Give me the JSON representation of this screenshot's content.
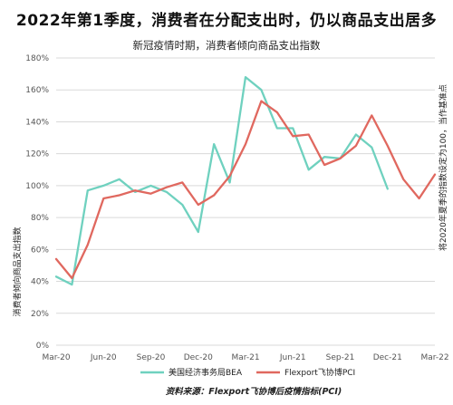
{
  "chart_data": {
    "type": "line",
    "title": "2022年第1季度，消费者在分配支出时，仍以商品支出居多",
    "subtitle": "新冠疫情时期，消费者倾向商品支出指数",
    "ylabel_left": "消费者倾向商品支出指数",
    "ylabel_right": "将2020年夏季的指数设定为100，当作基准点",
    "ylim": [
      0,
      180
    ],
    "y_ticks": [
      "0%",
      "20%",
      "40%",
      "60%",
      "80%",
      "100%",
      "120%",
      "140%",
      "160%",
      "180%"
    ],
    "x_ticks": [
      "Mar-20",
      "Jun-20",
      "Sep-20",
      "Dec-20",
      "Mar-21",
      "Jun-21",
      "Sep-21",
      "Dec-21",
      "Mar-22"
    ],
    "x_unit": "month",
    "x": [
      "Mar-20",
      "Apr-20",
      "May-20",
      "Jun-20",
      "Jul-20",
      "Aug-20",
      "Sep-20",
      "Oct-20",
      "Nov-20",
      "Dec-20",
      "Jan-21",
      "Feb-21",
      "Mar-21",
      "Apr-21",
      "May-21",
      "Jun-21",
      "Jul-21",
      "Aug-21",
      "Sep-21",
      "Oct-21",
      "Nov-21",
      "Dec-21",
      "Jan-22",
      "Feb-22",
      "Mar-22"
    ],
    "grid": true,
    "legend_position": "bottom",
    "series": [
      {
        "name": "美国经济事务局BEA",
        "color": "#6fd1bf",
        "values": [
          43,
          38,
          97,
          100,
          104,
          96,
          100,
          96,
          88,
          71,
          126,
          102,
          168,
          160,
          136,
          136,
          110,
          118,
          117,
          132,
          124,
          98,
          null,
          null,
          null
        ]
      },
      {
        "name": "Flexport飞协博PCI",
        "color": "#e0685f",
        "values": [
          54,
          42,
          63,
          92,
          94,
          97,
          95,
          99,
          102,
          88,
          94,
          106,
          126,
          153,
          146,
          131,
          132,
          113,
          117,
          125,
          144,
          125,
          104,
          92,
          107
        ]
      }
    ],
    "source": "资料来源：Flexport飞协博后疫情指标(PCI)"
  }
}
